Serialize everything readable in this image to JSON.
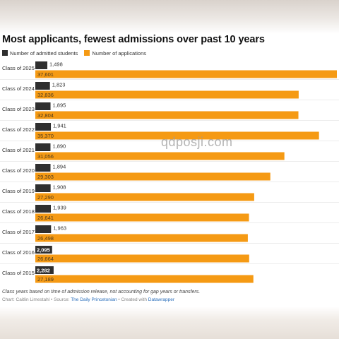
{
  "title": "Most applicants, fewest admissions over past 10 years",
  "legend": {
    "admitted": "Number of admitted students",
    "applications": "Number of applications"
  },
  "colors": {
    "admitted": "#2f2f2f",
    "applications": "#f59a14"
  },
  "note": "Class years based on time of admission release, not accounting for gap years or transfers.",
  "credit": {
    "chart_by": "Chart: Caitlin Limestahl",
    "sep1": " • Source: ",
    "source": "The Daily Princetonian",
    "sep2": " • Created with ",
    "tool": "Datawrapper"
  },
  "watermark": "qdposji.com",
  "chart_data": {
    "type": "bar",
    "orientation": "horizontal",
    "categories": [
      "Class of 2025",
      "Class of 2024",
      "Class of 2023",
      "Class of 2022",
      "Class of 2021",
      "Class of 2020",
      "Class of 2019",
      "Class of 2018",
      "Class of 2017",
      "Class of 2016",
      "Class of 2015"
    ],
    "series": [
      {
        "name": "Number of admitted students",
        "values": [
          1498,
          1823,
          1895,
          1941,
          1890,
          1894,
          1908,
          1939,
          1963,
          2095,
          2282
        ]
      },
      {
        "name": "Number of applications",
        "values": [
          37601,
          32836,
          32804,
          35370,
          31056,
          29303,
          27290,
          26641,
          26498,
          26664,
          27189
        ]
      }
    ],
    "value_labels": {
      "admitted": [
        "1,498",
        "1,823",
        "1,895",
        "1,941",
        "1,890",
        "1,894",
        "1,908",
        "1,939",
        "1,963",
        "2,095",
        "2,282"
      ],
      "applications": [
        "37,601",
        "32,836",
        "32,804",
        "35,370",
        "31,056",
        "29,303",
        "27,290",
        "26,641",
        "26,498",
        "26,664",
        "27,189"
      ]
    },
    "title": "Most applicants, fewest admissions over past 10 years",
    "xlabel": "",
    "ylabel": "",
    "xlim": [
      0,
      37601
    ],
    "legend_position": "top-left",
    "grid": false
  }
}
